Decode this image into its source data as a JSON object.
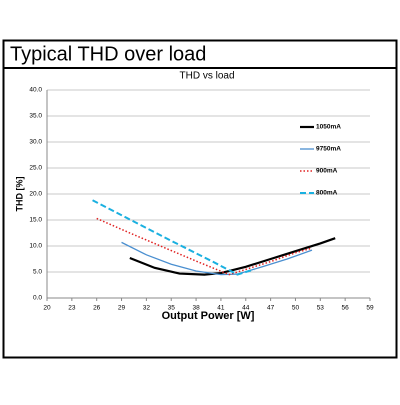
{
  "header": {
    "title": "Typical THD over load"
  },
  "chart_data": {
    "type": "line",
    "title": "THD  vs load",
    "x_label": "Output Power [W]",
    "y_label": "THD [%]",
    "xlim": [
      20,
      59
    ],
    "xticks": [
      20,
      23,
      26,
      29,
      32,
      35,
      38,
      41,
      44,
      47,
      50,
      53,
      56,
      59
    ],
    "ylim": [
      0,
      40
    ],
    "yticks": [
      {
        "value": 0,
        "label": "0.0"
      },
      {
        "value": 5,
        "label": "5.0"
      },
      {
        "value": 10,
        "label": "10.0"
      },
      {
        "value": 15,
        "label": "15.0"
      },
      {
        "value": 20,
        "label": "20.0"
      },
      {
        "value": 25,
        "label": "25.0"
      },
      {
        "value": 30,
        "label": "30.0"
      },
      {
        "value": 35,
        "label": "35.0"
      },
      {
        "value": 40,
        "label": "40.0"
      }
    ],
    "grid": true,
    "legend": "right",
    "series": [
      {
        "name": "1050mA",
        "color": "#000000",
        "style": "solid",
        "x": [
          30,
          33,
          36,
          39,
          41,
          44,
          47,
          50,
          53,
          54.8
        ],
        "values": [
          7.7,
          5.8,
          4.7,
          4.5,
          4.8,
          6,
          7.5,
          9,
          10.5,
          11.5
        ]
      },
      {
        "name": "9750mA",
        "color": "#4a8fd0",
        "style": "solid",
        "x": [
          29,
          32,
          35,
          38,
          41,
          43,
          46,
          49,
          52
        ],
        "values": [
          10.7,
          8.3,
          6.5,
          5.2,
          4.5,
          4.6,
          6,
          7.5,
          9.2
        ]
      },
      {
        "name": "900mA",
        "color": "#e02020",
        "style": "dotted",
        "x": [
          26,
          30,
          34,
          38,
          42,
          44,
          47,
          50,
          52
        ],
        "values": [
          15.3,
          12.5,
          9.8,
          7.1,
          4.5,
          5.5,
          7,
          8.7,
          9.6
        ]
      },
      {
        "name": "800mA",
        "color": "#1ab0e0",
        "style": "dashed",
        "x": [
          25.5,
          30,
          35,
          40,
          43,
          45
        ],
        "values": [
          18.8,
          15.1,
          11,
          7,
          4.5,
          5.5
        ]
      }
    ]
  }
}
